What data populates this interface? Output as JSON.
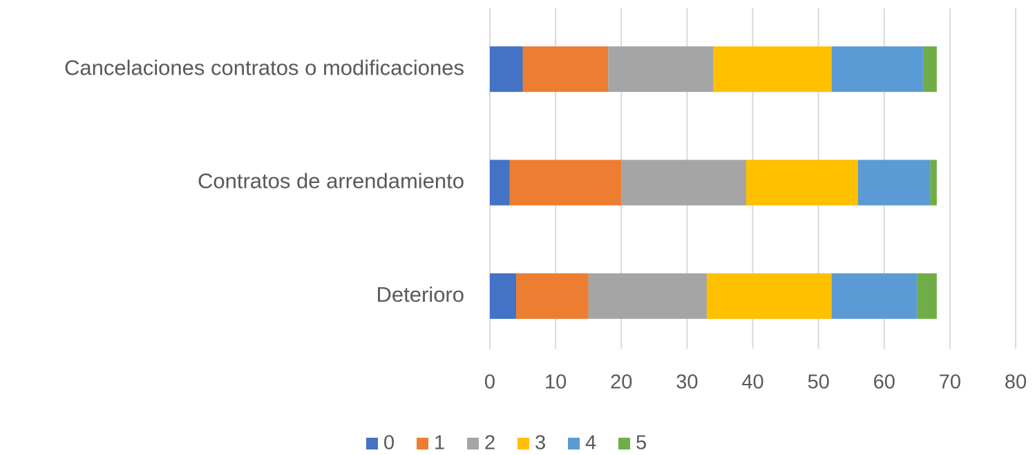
{
  "chart_data": {
    "type": "stacked-bar-horizontal",
    "categories": [
      "Cancelaciones contratos o modificaciones",
      "Contratos de arrendamiento",
      "Deterioro"
    ],
    "series": [
      {
        "name": "0",
        "color": "#4472c4",
        "values": [
          5,
          3,
          4
        ]
      },
      {
        "name": "1",
        "color": "#ed7d31",
        "values": [
          13,
          17,
          11
        ]
      },
      {
        "name": "2",
        "color": "#a5a5a5",
        "values": [
          16,
          19,
          18
        ]
      },
      {
        "name": "3",
        "color": "#ffc000",
        "values": [
          18,
          17,
          19
        ]
      },
      {
        "name": "4",
        "color": "#5b9bd5",
        "values": [
          14,
          11,
          13
        ]
      },
      {
        "name": "5",
        "color": "#70ad47",
        "values": [
          2,
          1,
          3
        ]
      }
    ],
    "xlim": [
      0,
      80
    ],
    "xticks": [
      0,
      10,
      20,
      30,
      40,
      50,
      60,
      70,
      80
    ],
    "grid": true,
    "legend": "bottom"
  }
}
